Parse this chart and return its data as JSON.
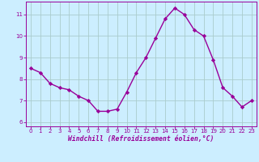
{
  "x": [
    0,
    1,
    2,
    3,
    4,
    5,
    6,
    7,
    8,
    9,
    10,
    11,
    12,
    13,
    14,
    15,
    16,
    17,
    18,
    19,
    20,
    21,
    22,
    23
  ],
  "y": [
    8.5,
    8.3,
    7.8,
    7.6,
    7.5,
    7.2,
    7.0,
    6.5,
    6.5,
    6.6,
    7.4,
    8.3,
    9.0,
    9.9,
    10.8,
    11.3,
    11.0,
    10.3,
    10.0,
    8.9,
    7.6,
    7.2,
    6.7,
    7.0
  ],
  "line_color": "#990099",
  "marker": "D",
  "marker_size": 2.2,
  "bg_color": "#cceeff",
  "grid_color": "#aacccc",
  "xlabel": "Windchill (Refroidissement éolien,°C)",
  "xlabel_color": "#990099",
  "tick_color": "#990099",
  "xlim": [
    -0.5,
    23.5
  ],
  "ylim": [
    5.8,
    11.6
  ],
  "yticks": [
    6,
    7,
    8,
    9,
    10,
    11
  ],
  "xticks": [
    0,
    1,
    2,
    3,
    4,
    5,
    6,
    7,
    8,
    9,
    10,
    11,
    12,
    13,
    14,
    15,
    16,
    17,
    18,
    19,
    20,
    21,
    22,
    23
  ],
  "line_width": 1.0
}
